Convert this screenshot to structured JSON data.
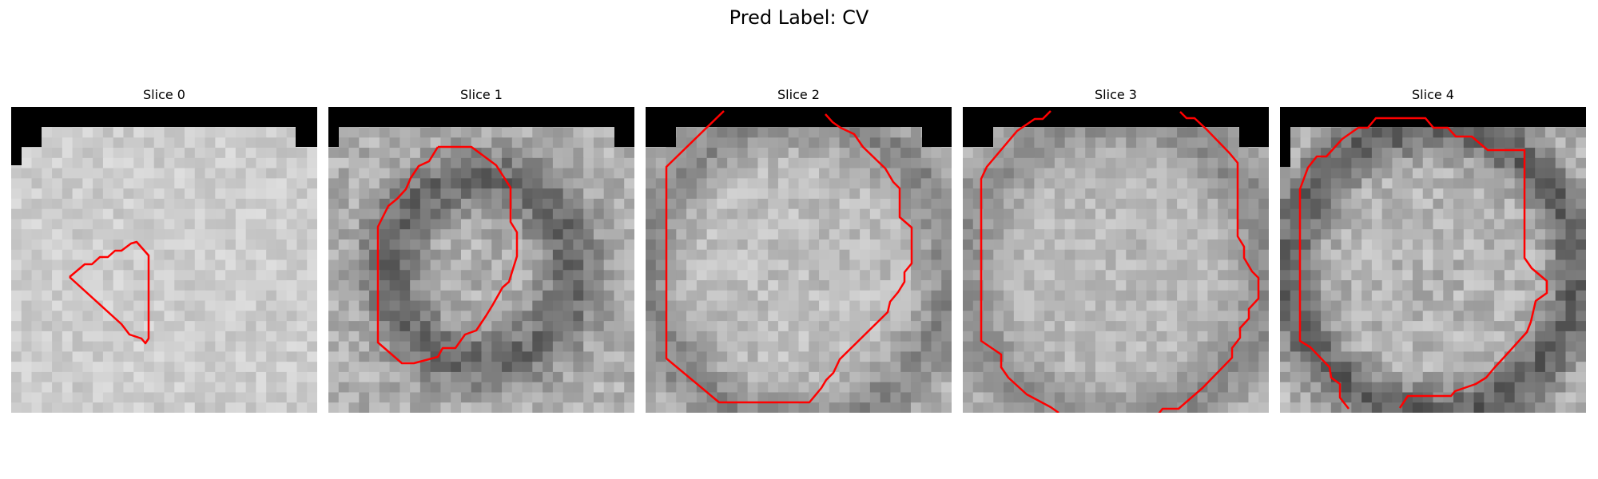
{
  "figure": {
    "title": "Pred Label: CV"
  },
  "panels": [
    {
      "title": "Slice 0"
    },
    {
      "title": "Slice 1"
    },
    {
      "title": "Slice 2"
    },
    {
      "title": "Slice 3"
    },
    {
      "title": "Slice 4"
    }
  ],
  "colors": {
    "contour": "#ff0000",
    "background": "#ffffff",
    "mask": "#000000"
  }
}
